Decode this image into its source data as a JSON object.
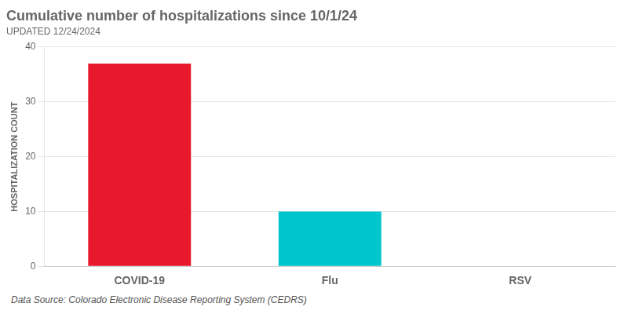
{
  "chart_data": {
    "type": "bar",
    "title": "Cumulative number of hospitalizations since 10/1/24",
    "subtitle": "UPDATED 12/24/2024",
    "categories": [
      "COVID-19",
      "Flu",
      "RSV"
    ],
    "values": [
      37,
      10,
      0
    ],
    "colors": [
      "#E8192C",
      "#00C5CD",
      "#FFFFFF"
    ],
    "y_label": "HOSPITALIZATION COUNT",
    "ylim": [
      0,
      40
    ],
    "yticks": [
      0,
      10,
      20,
      30,
      40
    ],
    "grid": true,
    "annotations": [
      "Data Source: Colorado Electronic Disease Reporting System (CEDRS)"
    ]
  }
}
